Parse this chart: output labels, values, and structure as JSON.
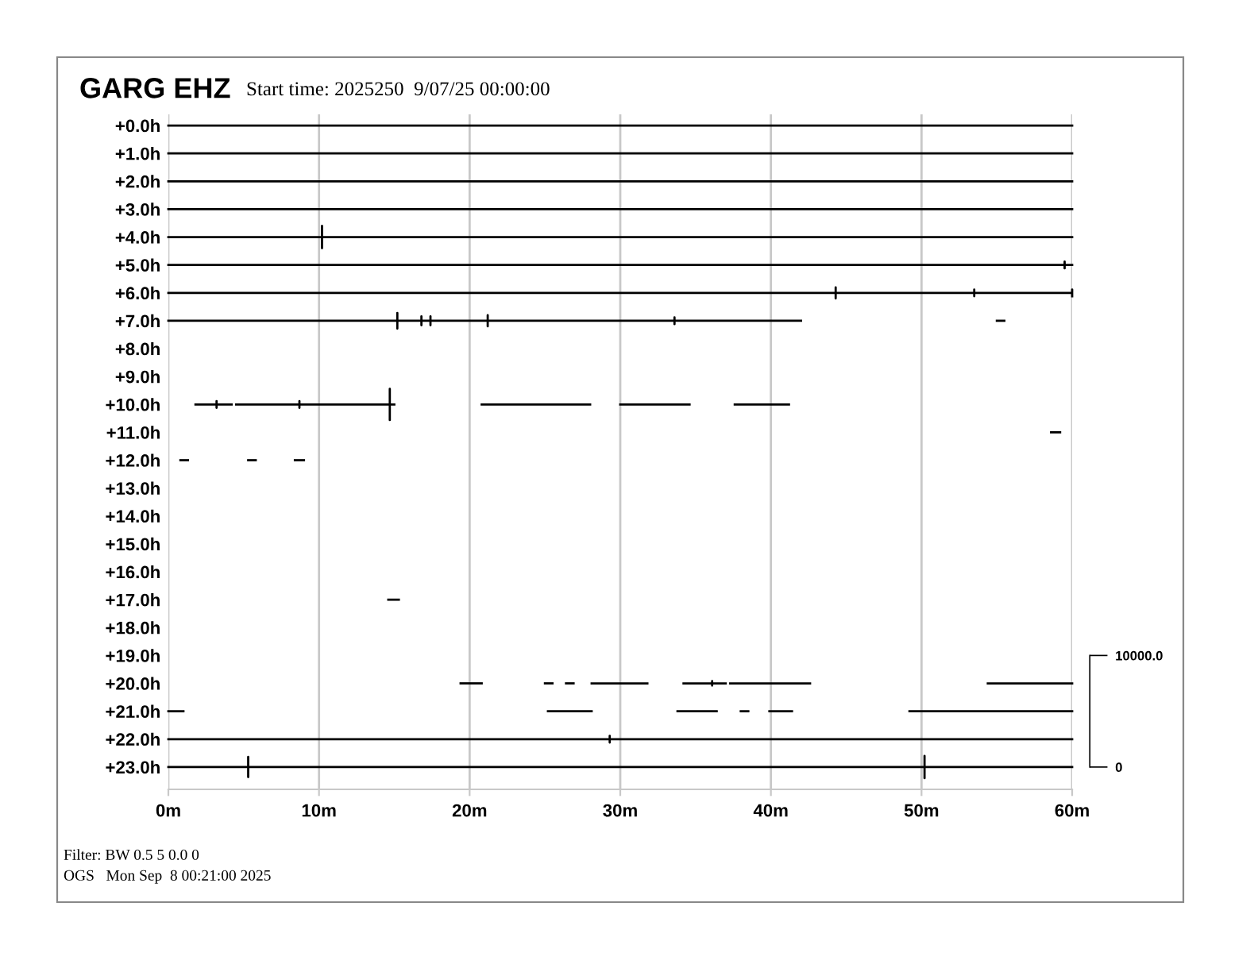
{
  "chart_data": {
    "type": "line",
    "title": "GARG EHZ",
    "subtitle": "Start time: 2025250  9/07/25 00:00:00",
    "annotations": [
      "Filter: BW 0.5 5 0.0 0",
      "OGS   Mon Sep  8 00:21:00 2025"
    ],
    "xlim": [
      0,
      60
    ],
    "xticks": [
      {
        "value": 0,
        "label": "0m"
      },
      {
        "value": 10,
        "label": "10m"
      },
      {
        "value": 20,
        "label": "20m"
      },
      {
        "value": 30,
        "label": "30m"
      },
      {
        "value": 40,
        "label": "40m"
      },
      {
        "value": 50,
        "label": "50m"
      },
      {
        "value": 60,
        "label": "60m"
      }
    ],
    "ylim": [
      23.8,
      -0.4
    ],
    "yticks": [
      {
        "value": 0,
        "label": "+0.0h"
      },
      {
        "value": 1,
        "label": "+1.0h"
      },
      {
        "value": 2,
        "label": "+2.0h"
      },
      {
        "value": 3,
        "label": "+3.0h"
      },
      {
        "value": 4,
        "label": "+4.0h"
      },
      {
        "value": 5,
        "label": "+5.0h"
      },
      {
        "value": 6,
        "label": "+6.0h"
      },
      {
        "value": 7,
        "label": "+7.0h"
      },
      {
        "value": 8,
        "label": "+8.0h"
      },
      {
        "value": 9,
        "label": "+9.0h"
      },
      {
        "value": 10,
        "label": "+10.0h"
      },
      {
        "value": 11,
        "label": "+11.0h"
      },
      {
        "value": 12,
        "label": "+12.0h"
      },
      {
        "value": 13,
        "label": "+13.0h"
      },
      {
        "value": 14,
        "label": "+14.0h"
      },
      {
        "value": 15,
        "label": "+15.0h"
      },
      {
        "value": 16,
        "label": "+16.0h"
      },
      {
        "value": 17,
        "label": "+17.0h"
      },
      {
        "value": 18,
        "label": "+18.0h"
      },
      {
        "value": 19,
        "label": "+19.0h"
      },
      {
        "value": 20,
        "label": "+20.0h"
      },
      {
        "value": 21,
        "label": "+21.0h"
      },
      {
        "value": 22,
        "label": "+22.0h"
      },
      {
        "value": 23,
        "label": "+23.0h"
      }
    ],
    "y2lim": [
      -2000,
      58500
    ],
    "y2ticks": [
      0,
      {
        "value": 10000,
        "label": "10000.0"
      }
    ],
    "grid": "x",
    "legend": false,
    "marker": "none",
    "line_style": "solid",
    "series": [
      {
        "axis": "y2",
        "color": "#000000",
        "x": [
          0,
          60
        ],
        "values": [
          57500,
          57500
        ]
      },
      {
        "axis": "y2",
        "color": "#000000",
        "x": [
          0,
          60
        ],
        "values": [
          55000,
          55000
        ]
      },
      {
        "axis": "y2",
        "color": "#000000",
        "x": [
          0,
          60
        ],
        "values": [
          52500,
          52500
        ]
      },
      {
        "axis": "y2",
        "color": "#000000",
        "x": [
          0,
          60
        ],
        "values": [
          50000,
          50000
        ]
      },
      {
        "axis": "y2",
        "color": "#000000",
        "x": [
          0,
          10.2,
          10.2,
          10.2,
          10.2,
          60
        ],
        "values": [
          47500,
          47500,
          48500,
          46500,
          47500,
          47500
        ]
      },
      {
        "axis": "y2",
        "color": "#000000",
        "x": [
          0,
          59.5,
          59.5,
          59.5,
          59.5,
          60
        ],
        "values": [
          45000,
          45000,
          45300,
          44700,
          45000,
          45000
        ]
      },
      {
        "axis": "y2",
        "color": "#000000",
        "x": [
          0,
          44.3,
          44.3,
          44.3,
          44.3,
          53.5,
          53.5,
          53.5,
          53.5,
          60,
          60,
          60
        ],
        "values": [
          42500,
          42500,
          43000,
          42000,
          42500,
          42500,
          42800,
          42200,
          42500,
          42500,
          42800,
          42200
        ]
      },
      {
        "axis": "y2",
        "color": "#000000",
        "x": [
          0,
          15.2,
          15.2,
          15.2,
          15.2,
          16.8,
          16.8,
          16.8,
          16.8,
          17.4,
          17.4,
          17.4,
          17.4,
          21.2,
          21.2,
          21.2,
          21.2,
          33.6,
          33.6,
          33.6,
          33.6,
          42
        ],
        "values": [
          40000,
          40000,
          40700,
          39300,
          40000,
          40000,
          40400,
          39600,
          40000,
          40000,
          40400,
          39600,
          40000,
          40000,
          40500,
          39500,
          40000,
          40000,
          40300,
          39700,
          40000,
          40000
        ]
      },
      {
        "axis": "y2",
        "color": "#000000",
        "x": [
          55.0,
          55.5
        ],
        "values": [
          40000,
          40000
        ]
      },
      {
        "axis": "y2",
        "color": "#000000",
        "x": [
          1.8,
          3.2,
          3.2,
          3.2,
          3.2,
          4.2
        ],
        "values": [
          32500,
          32500,
          32800,
          32200,
          32500,
          32500
        ]
      },
      {
        "axis": "y2",
        "color": "#000000",
        "x": [
          4.5,
          8.7,
          8.7,
          8.7,
          8.7,
          14.7,
          14.7,
          14.7,
          14.7,
          15.0
        ],
        "values": [
          32500,
          32500,
          32800,
          32200,
          32500,
          32500,
          33900,
          31100,
          32500,
          32500
        ]
      },
      {
        "axis": "y2",
        "color": "#000000",
        "x": [
          20.8,
          28.0
        ],
        "values": [
          32500,
          32500
        ]
      },
      {
        "axis": "y2",
        "color": "#000000",
        "x": [
          30.0,
          34.6
        ],
        "values": [
          32500,
          32500
        ]
      },
      {
        "axis": "y2",
        "color": "#000000",
        "x": [
          37.6,
          41.2
        ],
        "values": [
          32500,
          32500
        ]
      },
      {
        "axis": "y2",
        "color": "#000000",
        "x": [
          58.6,
          59.2
        ],
        "values": [
          30000,
          30000
        ]
      },
      {
        "axis": "y2",
        "color": "#000000",
        "x": [
          0.8,
          1.3
        ],
        "values": [
          27500,
          27500
        ]
      },
      {
        "axis": "y2",
        "color": "#000000",
        "x": [
          5.3,
          5.8
        ],
        "values": [
          27500,
          27500
        ]
      },
      {
        "axis": "y2",
        "color": "#000000",
        "x": [
          8.4,
          9.0
        ],
        "values": [
          27500,
          27500
        ]
      },
      {
        "axis": "y2",
        "color": "#000000",
        "x": [
          14.6,
          15.3
        ],
        "values": [
          15000,
          15000
        ]
      },
      {
        "axis": "y2",
        "color": "#000000",
        "x": [
          19.4,
          20.8
        ],
        "values": [
          7500,
          7500
        ]
      },
      {
        "axis": "y2",
        "color": "#000000",
        "x": [
          25.0,
          25.5
        ],
        "values": [
          7500,
          7500
        ]
      },
      {
        "axis": "y2",
        "color": "#000000",
        "x": [
          26.4,
          26.9
        ],
        "values": [
          7500,
          7500
        ]
      },
      {
        "axis": "y2",
        "color": "#000000",
        "x": [
          28.1,
          31.8
        ],
        "values": [
          7500,
          7500
        ]
      },
      {
        "axis": "y2",
        "color": "#000000",
        "x": [
          34.2,
          36.1,
          36.1,
          36.1,
          36.1,
          37.0
        ],
        "values": [
          7500,
          7500,
          7700,
          7300,
          7500,
          7500
        ]
      },
      {
        "axis": "y2",
        "color": "#000000",
        "x": [
          37.3,
          42.6
        ],
        "values": [
          7500,
          7500
        ]
      },
      {
        "axis": "y2",
        "color": "#000000",
        "x": [
          54.4,
          60
        ],
        "values": [
          7500,
          7500
        ]
      },
      {
        "axis": "y2",
        "color": "#000000",
        "x": [
          0,
          1.0
        ],
        "values": [
          5000,
          5000
        ]
      },
      {
        "axis": "y2",
        "color": "#000000",
        "x": [
          25.2,
          28.1
        ],
        "values": [
          5000,
          5000
        ]
      },
      {
        "axis": "y2",
        "color": "#000000",
        "x": [
          33.8,
          36.4
        ],
        "values": [
          5000,
          5000
        ]
      },
      {
        "axis": "y2",
        "color": "#000000",
        "x": [
          38.0,
          38.5
        ],
        "values": [
          5000,
          5000
        ]
      },
      {
        "axis": "y2",
        "color": "#000000",
        "x": [
          39.9,
          41.4
        ],
        "values": [
          5000,
          5000
        ]
      },
      {
        "axis": "y2",
        "color": "#000000",
        "x": [
          49.2,
          60
        ],
        "values": [
          5000,
          5000
        ]
      },
      {
        "axis": "y2",
        "color": "#000000",
        "x": [
          0,
          29.3,
          29.3,
          29.3,
          29.3,
          60
        ],
        "values": [
          2500,
          2500,
          2800,
          2200,
          2500,
          2500
        ]
      },
      {
        "axis": "y2",
        "color": "#000000",
        "x": [
          0,
          5.3,
          5.3,
          5.3,
          5.3,
          50.2,
          50.2,
          50.2,
          50.2,
          60
        ],
        "values": [
          0,
          0,
          900,
          -900,
          0,
          0,
          1000,
          -1000,
          0,
          0
        ]
      }
    ]
  }
}
